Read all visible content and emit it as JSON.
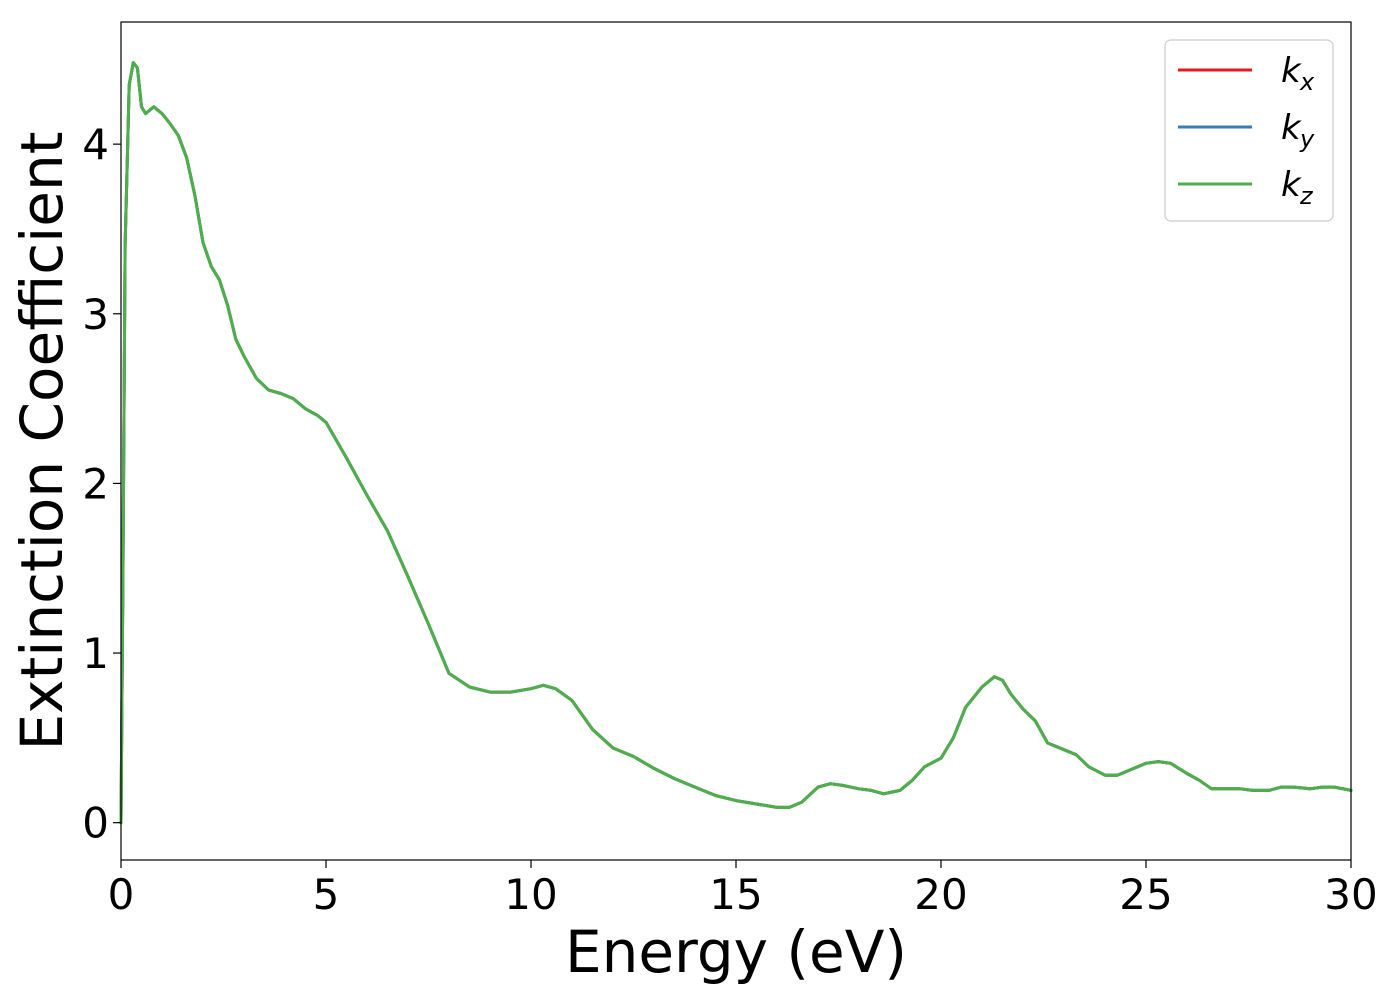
{
  "chart_data": {
    "type": "line",
    "title": "",
    "xlabel": "Energy (eV)",
    "ylabel": "Extinction Coefficient",
    "xlim": [
      0,
      30
    ],
    "ylim": [
      -0.22,
      4.72
    ],
    "xticks": [
      0,
      5,
      10,
      15,
      20,
      25,
      30
    ],
    "yticks": [
      0,
      1,
      2,
      3,
      4
    ],
    "xtick_labels": [
      "0",
      "5",
      "10",
      "15",
      "20",
      "25",
      "30"
    ],
    "ytick_labels": [
      "0",
      "1",
      "2",
      "3",
      "4"
    ],
    "grid": false,
    "legend_position": "top-right",
    "series": [
      {
        "name": "k_x",
        "legend_base": "k",
        "legend_sub": "x",
        "color": "#e41a1c",
        "x": [
          0.0,
          0.05,
          0.1,
          0.2,
          0.3,
          0.4,
          0.5,
          0.6,
          0.7,
          0.8,
          0.9,
          1.0,
          1.2,
          1.4,
          1.6,
          1.8,
          2.0,
          2.2,
          2.4,
          2.6,
          2.8,
          3.0,
          3.3,
          3.6,
          3.9,
          4.2,
          4.5,
          4.8,
          5.0,
          5.5,
          6.0,
          6.5,
          7.0,
          7.5,
          8.0,
          8.5,
          9.0,
          9.5,
          10.0,
          10.3,
          10.6,
          11.0,
          11.5,
          12.0,
          12.5,
          13.0,
          13.5,
          14.0,
          14.5,
          15.0,
          15.5,
          16.0,
          16.3,
          16.6,
          17.0,
          17.3,
          17.6,
          18.0,
          18.3,
          18.6,
          19.0,
          19.3,
          19.6,
          20.0,
          20.3,
          20.6,
          21.0,
          21.3,
          21.5,
          21.7,
          22.0,
          22.3,
          22.6,
          23.0,
          23.3,
          23.6,
          24.0,
          24.3,
          24.6,
          25.0,
          25.3,
          25.6,
          26.0,
          26.3,
          26.6,
          27.0,
          27.3,
          27.6,
          28.0,
          28.3,
          28.6,
          29.0,
          29.3,
          29.6,
          30.0
        ],
        "y": [
          0.0,
          1.5,
          3.4,
          4.35,
          4.48,
          4.45,
          4.22,
          4.18,
          4.2,
          4.22,
          4.2,
          4.18,
          4.12,
          4.05,
          3.92,
          3.7,
          3.42,
          3.28,
          3.2,
          3.05,
          2.85,
          2.75,
          2.62,
          2.55,
          2.53,
          2.5,
          2.44,
          2.4,
          2.36,
          2.15,
          1.93,
          1.72,
          1.45,
          1.17,
          0.88,
          0.8,
          0.77,
          0.77,
          0.79,
          0.81,
          0.79,
          0.72,
          0.55,
          0.44,
          0.39,
          0.32,
          0.26,
          0.21,
          0.16,
          0.13,
          0.11,
          0.09,
          0.09,
          0.12,
          0.21,
          0.23,
          0.22,
          0.2,
          0.19,
          0.17,
          0.19,
          0.25,
          0.33,
          0.38,
          0.5,
          0.68,
          0.8,
          0.86,
          0.84,
          0.76,
          0.67,
          0.6,
          0.47,
          0.43,
          0.4,
          0.33,
          0.28,
          0.28,
          0.31,
          0.35,
          0.36,
          0.35,
          0.29,
          0.25,
          0.2,
          0.2,
          0.2,
          0.19,
          0.19,
          0.21,
          0.21,
          0.2,
          0.21,
          0.21,
          0.19
        ]
      },
      {
        "name": "k_y",
        "legend_base": "k",
        "legend_sub": "y",
        "color": "#377eb8",
        "x": [
          0.0,
          0.05,
          0.1,
          0.2,
          0.3,
          0.4,
          0.5,
          0.6,
          0.7,
          0.8,
          0.9,
          1.0,
          1.2,
          1.4,
          1.6,
          1.8,
          2.0,
          2.2,
          2.4,
          2.6,
          2.8,
          3.0,
          3.3,
          3.6,
          3.9,
          4.2,
          4.5,
          4.8,
          5.0,
          5.5,
          6.0,
          6.5,
          7.0,
          7.5,
          8.0,
          8.5,
          9.0,
          9.5,
          10.0,
          10.3,
          10.6,
          11.0,
          11.5,
          12.0,
          12.5,
          13.0,
          13.5,
          14.0,
          14.5,
          15.0,
          15.5,
          16.0,
          16.3,
          16.6,
          17.0,
          17.3,
          17.6,
          18.0,
          18.3,
          18.6,
          19.0,
          19.3,
          19.6,
          20.0,
          20.3,
          20.6,
          21.0,
          21.3,
          21.5,
          21.7,
          22.0,
          22.3,
          22.6,
          23.0,
          23.3,
          23.6,
          24.0,
          24.3,
          24.6,
          25.0,
          25.3,
          25.6,
          26.0,
          26.3,
          26.6,
          27.0,
          27.3,
          27.6,
          28.0,
          28.3,
          28.6,
          29.0,
          29.3,
          29.6,
          30.0
        ],
        "y": [
          0.0,
          1.5,
          3.4,
          4.35,
          4.48,
          4.45,
          4.22,
          4.18,
          4.2,
          4.22,
          4.2,
          4.18,
          4.12,
          4.05,
          3.92,
          3.7,
          3.42,
          3.28,
          3.2,
          3.05,
          2.85,
          2.75,
          2.62,
          2.55,
          2.53,
          2.5,
          2.44,
          2.4,
          2.36,
          2.15,
          1.93,
          1.72,
          1.45,
          1.17,
          0.88,
          0.8,
          0.77,
          0.77,
          0.79,
          0.81,
          0.79,
          0.72,
          0.55,
          0.44,
          0.39,
          0.32,
          0.26,
          0.21,
          0.16,
          0.13,
          0.11,
          0.09,
          0.09,
          0.12,
          0.21,
          0.23,
          0.22,
          0.2,
          0.19,
          0.17,
          0.19,
          0.25,
          0.33,
          0.38,
          0.5,
          0.68,
          0.8,
          0.86,
          0.84,
          0.76,
          0.67,
          0.6,
          0.47,
          0.43,
          0.4,
          0.33,
          0.28,
          0.28,
          0.31,
          0.35,
          0.36,
          0.35,
          0.29,
          0.25,
          0.2,
          0.2,
          0.2,
          0.19,
          0.19,
          0.21,
          0.21,
          0.2,
          0.21,
          0.21,
          0.19
        ]
      },
      {
        "name": "k_z",
        "legend_base": "k",
        "legend_sub": "z",
        "color": "#4daf4a",
        "x": [
          0.0,
          0.05,
          0.1,
          0.2,
          0.3,
          0.4,
          0.5,
          0.6,
          0.7,
          0.8,
          0.9,
          1.0,
          1.2,
          1.4,
          1.6,
          1.8,
          2.0,
          2.2,
          2.4,
          2.6,
          2.8,
          3.0,
          3.3,
          3.6,
          3.9,
          4.2,
          4.5,
          4.8,
          5.0,
          5.5,
          6.0,
          6.5,
          7.0,
          7.5,
          8.0,
          8.5,
          9.0,
          9.5,
          10.0,
          10.3,
          10.6,
          11.0,
          11.5,
          12.0,
          12.5,
          13.0,
          13.5,
          14.0,
          14.5,
          15.0,
          15.5,
          16.0,
          16.3,
          16.6,
          17.0,
          17.3,
          17.6,
          18.0,
          18.3,
          18.6,
          19.0,
          19.3,
          19.6,
          20.0,
          20.3,
          20.6,
          21.0,
          21.3,
          21.5,
          21.7,
          22.0,
          22.3,
          22.6,
          23.0,
          23.3,
          23.6,
          24.0,
          24.3,
          24.6,
          25.0,
          25.3,
          25.6,
          26.0,
          26.3,
          26.6,
          27.0,
          27.3,
          27.6,
          28.0,
          28.3,
          28.6,
          29.0,
          29.3,
          29.6,
          30.0
        ],
        "y": [
          0.0,
          1.5,
          3.4,
          4.35,
          4.48,
          4.45,
          4.22,
          4.18,
          4.2,
          4.22,
          4.2,
          4.18,
          4.12,
          4.05,
          3.92,
          3.7,
          3.42,
          3.28,
          3.2,
          3.05,
          2.85,
          2.75,
          2.62,
          2.55,
          2.53,
          2.5,
          2.44,
          2.4,
          2.36,
          2.15,
          1.93,
          1.72,
          1.45,
          1.17,
          0.88,
          0.8,
          0.77,
          0.77,
          0.79,
          0.81,
          0.79,
          0.72,
          0.55,
          0.44,
          0.39,
          0.32,
          0.26,
          0.21,
          0.16,
          0.13,
          0.11,
          0.09,
          0.09,
          0.12,
          0.21,
          0.23,
          0.22,
          0.2,
          0.19,
          0.17,
          0.19,
          0.25,
          0.33,
          0.38,
          0.5,
          0.68,
          0.8,
          0.86,
          0.84,
          0.76,
          0.67,
          0.6,
          0.47,
          0.43,
          0.4,
          0.33,
          0.28,
          0.28,
          0.31,
          0.35,
          0.36,
          0.35,
          0.29,
          0.25,
          0.2,
          0.2,
          0.2,
          0.19,
          0.19,
          0.21,
          0.21,
          0.2,
          0.21,
          0.21,
          0.19
        ]
      }
    ]
  }
}
